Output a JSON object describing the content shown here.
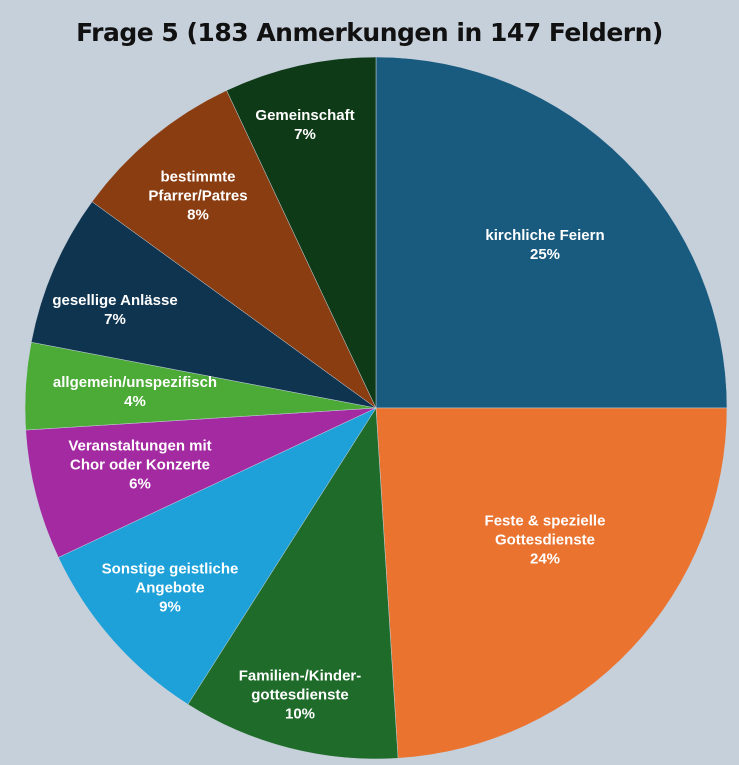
{
  "chart_data": {
    "type": "pie",
    "title": "Frage 5 (183 Anmerkungen in 147 Feldern)",
    "categories": [
      "kirchliche Feiern",
      "Feste & spezielle\nGottesdienste",
      "Familien-/Kinder-\ngottesdienste",
      "Sonstige geistliche\nAngebote",
      "Veranstaltungen mit\nChor oder Konzerte",
      "allgemein/unspezifisch",
      "gesellige Anlässe",
      "bestimmte\nPfarrer/Patres",
      "Gemeinschaft"
    ],
    "values": [
      25,
      24,
      10,
      9,
      6,
      4,
      7,
      8,
      7
    ],
    "value_labels": [
      "25%",
      "24%",
      "10%",
      "9%",
      "6%",
      "4%",
      "7%",
      "8%",
      "7%"
    ],
    "colors": [
      "#195b7f",
      "#e9732f",
      "#1e6b2a",
      "#1ea1d9",
      "#a42aa2",
      "#4bab36",
      "#0f3450",
      "#8a3d10",
      "#0f3a17"
    ]
  }
}
